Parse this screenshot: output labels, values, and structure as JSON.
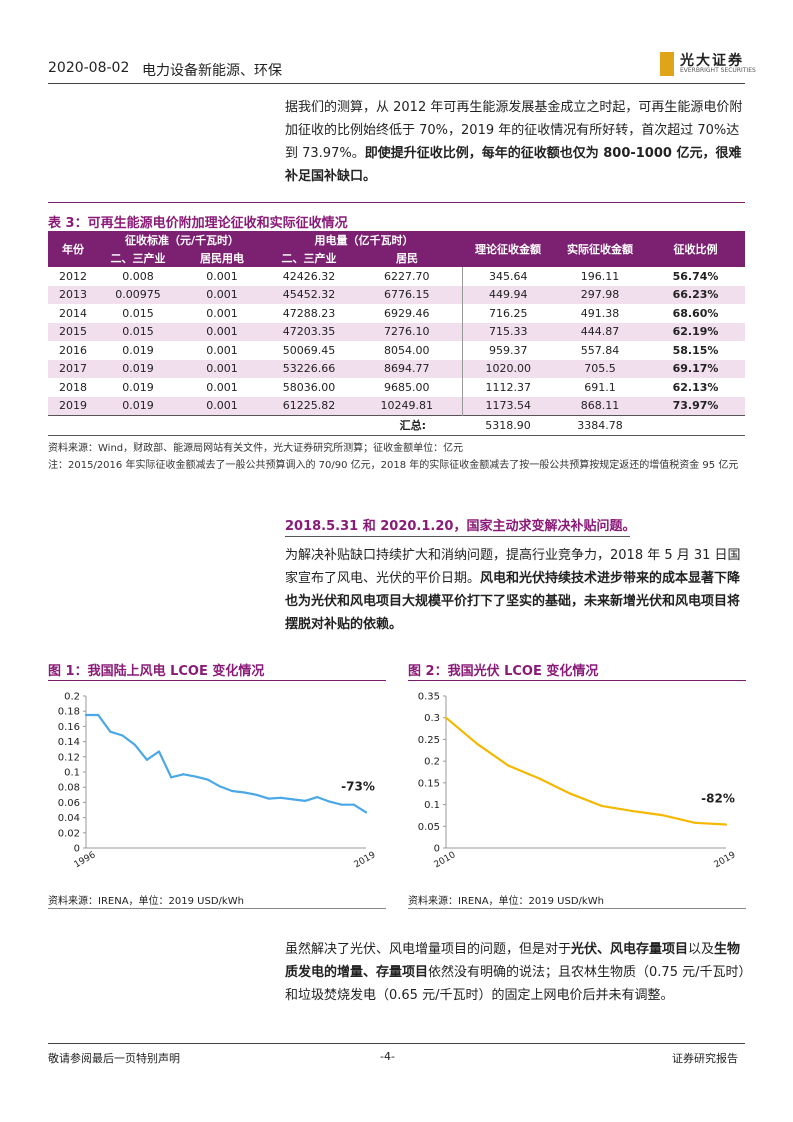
{
  "header": {
    "date": "2020-08-02",
    "industry": "电力设备新能源、环保",
    "logo": "光大证券",
    "logo_sub": "EVERBRIGHT SECURITIES"
  },
  "para1": {
    "text1": "据我们的测算，从 2012 年可再生能源发展基金成立之时起，可再生能源电价附加征收的比例始终低于 70%，2019 年的征收情况有所好转，首次超过 70%达到 73.97%。",
    "bold1": "即使提升征收比例，每年的征收额也仅为 800-1000 亿元，很难补足国补缺口。"
  },
  "table": {
    "title": "表 3：可再生能源电价附加理论征收和实际征收情况",
    "group_headers": [
      "年份",
      "征收标准（元/千瓦时）",
      "用电量（亿千瓦时）",
      "理论征收金额",
      "实际征收金额",
      "征收比例"
    ],
    "sub_headers": [
      "二、三产业",
      "居民用电",
      "二、三产业",
      "居民"
    ],
    "rows": [
      [
        "2012",
        "0.008",
        "0.001",
        "42426.32",
        "6227.70",
        "345.64",
        "196.11",
        "56.74%"
      ],
      [
        "2013",
        "0.00975",
        "0.001",
        "45452.32",
        "6776.15",
        "449.94",
        "297.98",
        "66.23%"
      ],
      [
        "2014",
        "0.015",
        "0.001",
        "47288.23",
        "6929.46",
        "716.25",
        "491.38",
        "68.60%"
      ],
      [
        "2015",
        "0.015",
        "0.001",
        "47203.35",
        "7276.10",
        "715.33",
        "444.87",
        "62.19%"
      ],
      [
        "2016",
        "0.019",
        "0.001",
        "50069.45",
        "8054.00",
        "959.37",
        "557.84",
        "58.15%"
      ],
      [
        "2017",
        "0.019",
        "0.001",
        "53226.66",
        "8694.77",
        "1020.00",
        "705.5",
        "69.17%"
      ],
      [
        "2018",
        "0.019",
        "0.001",
        "58036.00",
        "9685.00",
        "1112.37",
        "691.1",
        "62.13%"
      ],
      [
        "2019",
        "0.019",
        "0.001",
        "61225.82",
        "10249.81",
        "1173.54",
        "868.11",
        "73.97%"
      ]
    ],
    "sum_label": "汇总:",
    "sum_theory": "5318.90",
    "sum_actual": "3384.78",
    "source": "资料来源：Wind，财政部、能源局网站有关文件，光大证券研究所测算；征收金额单位：亿元",
    "note": "注：2015/2016 年实际征收金额减去了一般公共预算调入的 70/90 亿元，2018 年的实际征收金额减去了按一般公共预算按规定返还的增值税资金 95 亿元"
  },
  "section2": {
    "title": "2018.5.31 和 2020.1.20，国家主动求变解决补贴问题。",
    "text1": "为解决补贴缺口持续扩大和消纳问题，提高行业竞争力，2018 年 5 月 31 日国家宣布了风电、光伏的平价日期。",
    "bold1": "风电和光伏持续技术进步带来的成本显著下降也为光伏和风电项目大规模平价打下了坚实的基础，未来新增光伏和风电项目将摆脱对补贴的依赖。"
  },
  "fig1": {
    "title": "图 1：我国陆上风电 LCOE 变化情况",
    "source": "资料来源：IRENA，单位：2019 USD/kWh",
    "annotation": "-73%"
  },
  "fig2": {
    "title": "图 2：我国光伏 LCOE 变化情况",
    "source": "资料来源：IRENA，单位：2019 USD/kWh",
    "annotation": "-82%"
  },
  "chart_data": [
    {
      "type": "line",
      "x_tick_labels": [
        "1996",
        "2019"
      ],
      "x": [
        1996,
        1997,
        1998,
        1999,
        2000,
        2001,
        2002,
        2003,
        2004,
        2005,
        2006,
        2007,
        2008,
        2009,
        2010,
        2011,
        2012,
        2013,
        2014,
        2015,
        2016,
        2017,
        2018,
        2019
      ],
      "values": [
        0.175,
        0.175,
        0.153,
        0.148,
        0.136,
        0.116,
        0.127,
        0.093,
        0.097,
        0.094,
        0.09,
        0.081,
        0.075,
        0.073,
        0.07,
        0.065,
        0.066,
        0.064,
        0.062,
        0.067,
        0.061,
        0.057,
        0.057,
        0.047
      ],
      "ylim": [
        0,
        0.2
      ],
      "yticks": [
        0,
        0.02,
        0.04,
        0.06,
        0.08,
        0.1,
        0.12,
        0.14,
        0.16,
        0.18,
        0.2
      ],
      "grid": false,
      "color": "#4aa8e6"
    },
    {
      "type": "line",
      "x_tick_labels": [
        "2010",
        "2019"
      ],
      "x": [
        2010,
        2011,
        2012,
        2013,
        2014,
        2015,
        2016,
        2017,
        2018,
        2019
      ],
      "values": [
        0.3,
        0.24,
        0.19,
        0.16,
        0.125,
        0.097,
        0.085,
        0.075,
        0.058,
        0.054
      ],
      "ylim": [
        0,
        0.35
      ],
      "yticks": [
        0,
        0.05,
        0.1,
        0.15,
        0.2,
        0.25,
        0.3,
        0.35
      ],
      "grid": false,
      "color": "#f5b800"
    }
  ],
  "para3": {
    "t1": "虽然解决了光伏、风电增量项目的问题，但是对于",
    "b1": "光伏、风电存量项目",
    "t2": "以及",
    "b2": "生物质发电的增量、存量项目",
    "t3": "依然没有明确的说法；且农林生物质（0.75 元/千瓦时）和垃圾焚烧发电（0.65 元/千瓦时）的固定上网电价后并未有调整。"
  },
  "footer": {
    "left": "敬请参阅最后一页特别声明",
    "center": "-4-",
    "right": "证券研究报告"
  }
}
